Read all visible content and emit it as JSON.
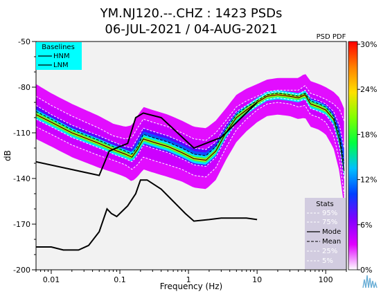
{
  "chart_data": {
    "type": "heatmap",
    "title_line1": "YM.NJ120.--.CHZ : 1423 PSDs",
    "title_line2": "06-JUL-2021 / 04-AUG-2021",
    "xlabel": "Frequency (Hz)",
    "ylabel": "dB",
    "x_scale": "log",
    "xlim": [
      0.006,
      200
    ],
    "ylim": [
      -200,
      -50
    ],
    "x_ticks": [
      {
        "value": 0.01,
        "label": "0.01"
      },
      {
        "value": 0.1,
        "label": "0.1"
      },
      {
        "value": 1,
        "label": "1"
      },
      {
        "value": 10,
        "label": "10"
      },
      {
        "value": 100,
        "label": "100"
      }
    ],
    "y_ticks": [
      {
        "value": -50,
        "label": "-50"
      },
      {
        "value": -80,
        "label": "-80"
      },
      {
        "value": -110,
        "label": "-110"
      },
      {
        "value": -140,
        "label": "-140"
      },
      {
        "value": -170,
        "label": "-170"
      },
      {
        "value": -200,
        "label": "-200"
      }
    ],
    "colorbar": {
      "title": "PSD PDF",
      "tick_labels": [
        "30%",
        "24%",
        "18%",
        "12%",
        "6%",
        "0%"
      ],
      "colors": [
        "#ff0000",
        "#ff8000",
        "#ffe000",
        "#80ff00",
        "#00ff40",
        "#00c0ff",
        "#0040ff",
        "#8000ff",
        "#e000ff",
        "#ffffff"
      ]
    },
    "baselines_legend": {
      "title": "Baselines",
      "items": [
        "HNM",
        "LNM"
      ],
      "color": "#00ffff"
    },
    "stats_legend": {
      "title": "Stats",
      "items": [
        "95%",
        "75%",
        "Mode",
        "Mean",
        "25%",
        "5%"
      ]
    },
    "series": [
      {
        "name": "HNM",
        "points": [
          [
            0.006,
            -129
          ],
          [
            0.05,
            -138
          ],
          [
            0.07,
            -122
          ],
          [
            0.1,
            -119
          ],
          [
            0.13,
            -117
          ],
          [
            0.17,
            -100
          ],
          [
            0.22,
            -97
          ],
          [
            0.4,
            -100
          ],
          [
            1.2,
            -120
          ],
          [
            3,
            -113
          ],
          [
            10,
            -90
          ]
        ]
      },
      {
        "name": "LNM",
        "points": [
          [
            0.006,
            -185
          ],
          [
            0.01,
            -185
          ],
          [
            0.015,
            -187
          ],
          [
            0.025,
            -187
          ],
          [
            0.035,
            -184
          ],
          [
            0.05,
            -175
          ],
          [
            0.065,
            -160
          ],
          [
            0.075,
            -163
          ],
          [
            0.09,
            -165
          ],
          [
            0.1,
            -163
          ],
          [
            0.13,
            -158
          ],
          [
            0.17,
            -150
          ],
          [
            0.2,
            -141
          ],
          [
            0.25,
            -141
          ],
          [
            0.4,
            -147
          ],
          [
            0.6,
            -155
          ],
          [
            0.9,
            -163
          ],
          [
            1.2,
            -168
          ],
          [
            2,
            -167
          ],
          [
            3,
            -166
          ],
          [
            5,
            -166
          ],
          [
            7,
            -166
          ],
          [
            10,
            -167
          ]
        ]
      },
      {
        "name": "Mode",
        "points": [
          [
            0.006,
            -98
          ],
          [
            0.01,
            -103
          ],
          [
            0.02,
            -110
          ],
          [
            0.05,
            -117
          ],
          [
            0.08,
            -121
          ],
          [
            0.12,
            -124
          ],
          [
            0.15,
            -126
          ],
          [
            0.18,
            -121
          ],
          [
            0.22,
            -114
          ],
          [
            0.3,
            -116
          ],
          [
            0.5,
            -119
          ],
          [
            0.8,
            -123
          ],
          [
            1.2,
            -127
          ],
          [
            1.8,
            -128
          ],
          [
            2.5,
            -122
          ],
          [
            3.5,
            -110
          ],
          [
            5,
            -100
          ],
          [
            7,
            -95
          ],
          [
            10,
            -90
          ],
          [
            14,
            -86
          ],
          [
            20,
            -85
          ],
          [
            30,
            -86
          ],
          [
            40,
            -87
          ],
          [
            50,
            -85
          ],
          [
            60,
            -91
          ],
          [
            80,
            -93
          ],
          [
            100,
            -95
          ],
          [
            130,
            -101
          ],
          [
            160,
            -115
          ],
          [
            185,
            -135
          ]
        ]
      },
      {
        "name": "Mean",
        "points": [
          [
            0.006,
            -96
          ],
          [
            0.01,
            -101
          ],
          [
            0.02,
            -108
          ],
          [
            0.05,
            -115
          ],
          [
            0.08,
            -119
          ],
          [
            0.12,
            -122
          ],
          [
            0.15,
            -124
          ],
          [
            0.18,
            -119
          ],
          [
            0.22,
            -111
          ],
          [
            0.3,
            -113
          ],
          [
            0.5,
            -116
          ],
          [
            0.8,
            -120
          ],
          [
            1.2,
            -124
          ],
          [
            1.8,
            -125
          ],
          [
            2.5,
            -119
          ],
          [
            3.5,
            -108
          ],
          [
            5,
            -98
          ],
          [
            7,
            -93
          ],
          [
            10,
            -89
          ],
          [
            14,
            -85
          ],
          [
            20,
            -84
          ],
          [
            30,
            -85
          ],
          [
            40,
            -86
          ],
          [
            50,
            -84
          ],
          [
            60,
            -89
          ],
          [
            80,
            -91
          ],
          [
            100,
            -93
          ],
          [
            130,
            -99
          ],
          [
            160,
            -112
          ],
          [
            185,
            -130
          ]
        ]
      },
      {
        "name": "95%",
        "points": [
          [
            0.006,
            -86
          ],
          [
            0.01,
            -92
          ],
          [
            0.02,
            -99
          ],
          [
            0.05,
            -107
          ],
          [
            0.08,
            -112
          ],
          [
            0.12,
            -114
          ],
          [
            0.15,
            -113
          ],
          [
            0.18,
            -107
          ],
          [
            0.22,
            -101
          ],
          [
            0.3,
            -103
          ],
          [
            0.5,
            -106
          ],
          [
            0.8,
            -110
          ],
          [
            1.2,
            -114
          ],
          [
            1.8,
            -115
          ],
          [
            2.5,
            -110
          ],
          [
            3.5,
            -102
          ],
          [
            5,
            -93
          ],
          [
            7,
            -89
          ],
          [
            10,
            -86
          ],
          [
            14,
            -83
          ],
          [
            20,
            -82
          ],
          [
            30,
            -82
          ],
          [
            40,
            -82
          ],
          [
            50,
            -79
          ],
          [
            60,
            -84
          ],
          [
            80,
            -86
          ],
          [
            100,
            -88
          ],
          [
            130,
            -91
          ],
          [
            160,
            -95
          ],
          [
            185,
            -102
          ]
        ]
      },
      {
        "name": "75%",
        "points": [
          [
            0.006,
            -92
          ],
          [
            0.01,
            -98
          ],
          [
            0.02,
            -105
          ],
          [
            0.05,
            -112
          ],
          [
            0.08,
            -116
          ],
          [
            0.12,
            -119
          ],
          [
            0.15,
            -120
          ],
          [
            0.18,
            -114
          ],
          [
            0.22,
            -107
          ],
          [
            0.3,
            -109
          ],
          [
            0.5,
            -112
          ],
          [
            0.8,
            -116
          ],
          [
            1.2,
            -120
          ],
          [
            1.8,
            -121
          ],
          [
            2.5,
            -116
          ],
          [
            3.5,
            -105
          ],
          [
            5,
            -96
          ],
          [
            7,
            -92
          ],
          [
            10,
            -88
          ],
          [
            14,
            -84
          ],
          [
            20,
            -83
          ],
          [
            30,
            -84
          ],
          [
            40,
            -85
          ],
          [
            50,
            -82
          ],
          [
            60,
            -87
          ],
          [
            80,
            -89
          ],
          [
            100,
            -91
          ],
          [
            130,
            -96
          ],
          [
            160,
            -106
          ],
          [
            185,
            -120
          ]
        ]
      },
      {
        "name": "25%",
        "points": [
          [
            0.006,
            -101
          ],
          [
            0.01,
            -106
          ],
          [
            0.02,
            -113
          ],
          [
            0.05,
            -120
          ],
          [
            0.08,
            -124
          ],
          [
            0.12,
            -127
          ],
          [
            0.15,
            -129
          ],
          [
            0.18,
            -125
          ],
          [
            0.22,
            -118
          ],
          [
            0.3,
            -120
          ],
          [
            0.5,
            -123
          ],
          [
            0.8,
            -127
          ],
          [
            1.2,
            -131
          ],
          [
            1.8,
            -132
          ],
          [
            2.5,
            -126
          ],
          [
            3.5,
            -114
          ],
          [
            5,
            -103
          ],
          [
            7,
            -97
          ],
          [
            10,
            -92
          ],
          [
            14,
            -88
          ],
          [
            20,
            -87
          ],
          [
            30,
            -88
          ],
          [
            40,
            -89
          ],
          [
            50,
            -88
          ],
          [
            60,
            -94
          ],
          [
            80,
            -96
          ],
          [
            100,
            -98
          ],
          [
            130,
            -105
          ],
          [
            160,
            -120
          ],
          [
            185,
            -140
          ]
        ]
      },
      {
        "name": "5%",
        "points": [
          [
            0.006,
            -106
          ],
          [
            0.01,
            -111
          ],
          [
            0.02,
            -118
          ],
          [
            0.05,
            -125
          ],
          [
            0.08,
            -128
          ],
          [
            0.12,
            -131
          ],
          [
            0.15,
            -134
          ],
          [
            0.18,
            -131
          ],
          [
            0.22,
            -126
          ],
          [
            0.3,
            -128
          ],
          [
            0.5,
            -131
          ],
          [
            0.8,
            -134
          ],
          [
            1.2,
            -138
          ],
          [
            1.8,
            -139
          ],
          [
            2.5,
            -133
          ],
          [
            3.5,
            -120
          ],
          [
            5,
            -108
          ],
          [
            7,
            -101
          ],
          [
            10,
            -95
          ],
          [
            14,
            -91
          ],
          [
            20,
            -90
          ],
          [
            30,
            -91
          ],
          [
            40,
            -93
          ],
          [
            50,
            -92
          ],
          [
            60,
            -98
          ],
          [
            80,
            -100
          ],
          [
            100,
            -103
          ],
          [
            130,
            -112
          ],
          [
            160,
            -128
          ],
          [
            185,
            -150
          ]
        ]
      }
    ]
  }
}
